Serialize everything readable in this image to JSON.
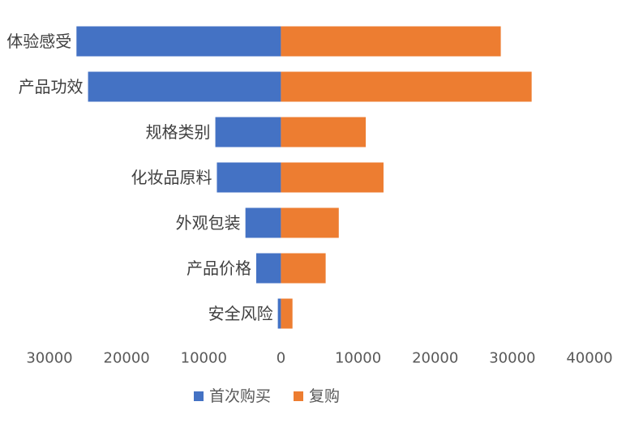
{
  "chart_data": {
    "type": "bar",
    "orientation": "horizontal",
    "stacked": true,
    "categories": [
      "体验感受",
      "产品功效",
      "规格类别",
      "化妆品原料",
      "外观包装",
      "产品价格",
      "安全风险"
    ],
    "series": [
      {
        "name": "首次购买",
        "color": "#4472C4",
        "values": [
          -26500,
          -25000,
          -8500,
          -8300,
          -4600,
          -3200,
          -400
        ]
      },
      {
        "name": "复购",
        "color": "#ED7D31",
        "values": [
          28500,
          32500,
          11000,
          13300,
          7500,
          5800,
          1500
        ]
      }
    ],
    "xlim": [
      -30000,
      40000
    ],
    "x_ticks": [
      -30000,
      -20000,
      -10000,
      0,
      10000,
      20000,
      30000,
      40000
    ],
    "x_tick_labels": [
      "30000",
      "20000",
      "10000",
      "0",
      "10000",
      "20000",
      "30000",
      "40000"
    ],
    "grid": false,
    "legend": {
      "position": "bottom",
      "items": [
        "首次购买",
        "复购"
      ]
    }
  }
}
